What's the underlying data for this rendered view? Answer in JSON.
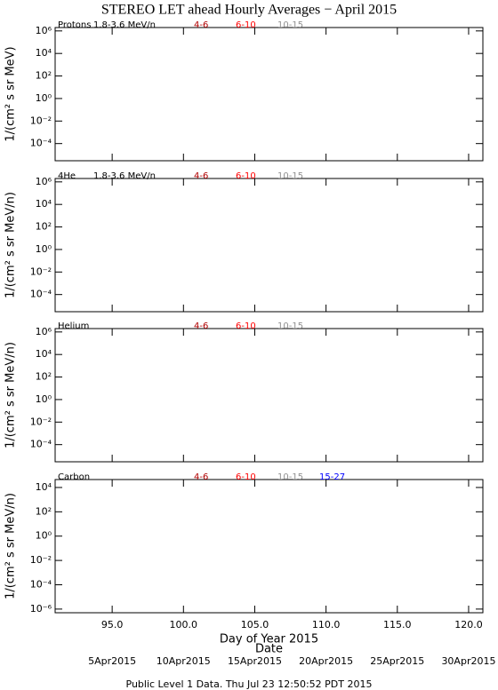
{
  "title": "STEREO LET ahead Hourly Averages − April 2015",
  "footer": "Public Level 1 Data. Thu Jul 23 12:50:52 PDT 2015",
  "chart_data": [
    {
      "type": "line",
      "label": "Protons",
      "ylabel": "1/(cm² s sr MeV)",
      "log_y": true,
      "xlim": [
        91,
        121
      ],
      "ylim": [
        3e-06,
        2000000
      ],
      "yticks": [
        {
          "value": 1000000,
          "label": "10⁶"
        },
        {
          "value": 10000,
          "label": "10⁴"
        },
        {
          "value": 100,
          "label": "10²"
        },
        {
          "value": 1,
          "label": "10⁰"
        },
        {
          "value": 0.01,
          "label": "10⁻²"
        },
        {
          "value": 0.0001,
          "label": "10⁻⁴"
        }
      ],
      "series": [
        {
          "name": "1.8-3.6 MeV/n",
          "color": "#000000"
        },
        {
          "name": "4-6",
          "color": "#b00000"
        },
        {
          "name": "6-10",
          "color": "#ff0000"
        },
        {
          "name": "10-15",
          "color": "#909090"
        }
      ]
    },
    {
      "type": "line",
      "label": "4He",
      "ylabel": "1/(cm² s sr MeV/n)",
      "log_y": true,
      "xlim": [
        91,
        121
      ],
      "ylim": [
        3e-06,
        2000000
      ],
      "yticks": [
        {
          "value": 1000000,
          "label": "10⁶"
        },
        {
          "value": 10000,
          "label": "10⁴"
        },
        {
          "value": 100,
          "label": "10²"
        },
        {
          "value": 1,
          "label": "10⁰"
        },
        {
          "value": 0.01,
          "label": "10⁻²"
        },
        {
          "value": 0.0001,
          "label": "10⁻⁴"
        }
      ],
      "series": [
        {
          "name": "1.8-3.6 MeV/n",
          "color": "#000000"
        },
        {
          "name": "4-6",
          "color": "#b00000"
        },
        {
          "name": "6-10",
          "color": "#ff0000"
        },
        {
          "name": "10-15",
          "color": "#909090"
        }
      ]
    },
    {
      "type": "line",
      "label": "Helium",
      "ylabel": "1/(cm² s sr MeV/n)",
      "log_y": true,
      "xlim": [
        91,
        121
      ],
      "ylim": [
        3e-06,
        2000000
      ],
      "yticks": [
        {
          "value": 1000000,
          "label": "10⁶"
        },
        {
          "value": 10000,
          "label": "10⁴"
        },
        {
          "value": 100,
          "label": "10²"
        },
        {
          "value": 1,
          "label": "10⁰"
        },
        {
          "value": 0.01,
          "label": "10⁻²"
        },
        {
          "value": 0.0001,
          "label": "10⁻⁴"
        }
      ],
      "series": [
        {
          "name": "4-6",
          "color": "#b00000"
        },
        {
          "name": "6-10",
          "color": "#ff0000"
        },
        {
          "name": "10-15",
          "color": "#909090"
        }
      ]
    },
    {
      "type": "line",
      "label": "Carbon",
      "ylabel": "1/(cm² s sr MeV/n)",
      "log_y": true,
      "xlabel": "Day of Year 2015",
      "x2label": "Date",
      "xlim": [
        91,
        121
      ],
      "ylim": [
        5e-07,
        45000
      ],
      "xticks": [
        {
          "value": 95,
          "label": "95.0"
        },
        {
          "value": 100,
          "label": "100.0"
        },
        {
          "value": 105,
          "label": "105.0"
        },
        {
          "value": 110,
          "label": "110.0"
        },
        {
          "value": 115,
          "label": "115.0"
        },
        {
          "value": 120,
          "label": "120.0"
        }
      ],
      "date_ticks": [
        {
          "value": 95,
          "label": "5Apr2015"
        },
        {
          "value": 100,
          "label": "10Apr2015"
        },
        {
          "value": 105,
          "label": "15Apr2015"
        },
        {
          "value": 110,
          "label": "20Apr2015"
        },
        {
          "value": 115,
          "label": "25Apr2015"
        },
        {
          "value": 120,
          "label": "30Apr2015"
        }
      ],
      "yticks": [
        {
          "value": 10000,
          "label": "10⁴"
        },
        {
          "value": 100,
          "label": "10²"
        },
        {
          "value": 1,
          "label": "10⁰"
        },
        {
          "value": 0.01,
          "label": "10⁻²"
        },
        {
          "value": 0.0001,
          "label": "10⁻⁴"
        },
        {
          "value": 1e-06,
          "label": "10⁻⁶"
        }
      ],
      "series": [
        {
          "name": "4-6",
          "color": "#b00000"
        },
        {
          "name": "6-10",
          "color": "#ff0000"
        },
        {
          "name": "10-15",
          "color": "#909090"
        },
        {
          "name": "15-27",
          "color": "#0000ff"
        }
      ]
    }
  ]
}
